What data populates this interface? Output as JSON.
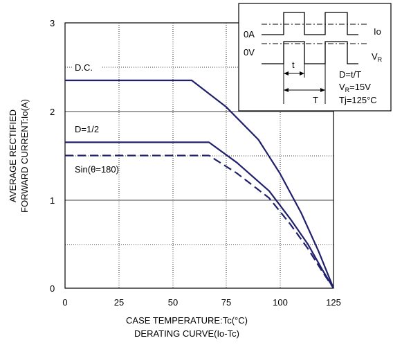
{
  "chart_data": {
    "type": "line",
    "xlabel": "CASE TEMPERATURE:Tc(°C)",
    "subtitle": "DERATING CURVE(Io-Tc)",
    "ylabel_line1": "AVERAGE RECTIFIED",
    "ylabel_line2": "FORWARD CURRENT:Io(A)",
    "xlim": [
      0,
      125
    ],
    "ylim": [
      0,
      3
    ],
    "x_ticks": [
      "0",
      "25",
      "50",
      "75",
      "100",
      "125"
    ],
    "y_ticks": [
      "0",
      "1",
      "2",
      "3"
    ],
    "grid": true,
    "series": [
      {
        "name": "D.C.",
        "style": "solid",
        "points": [
          [
            0,
            2.35
          ],
          [
            59,
            2.35
          ],
          [
            75,
            2.05
          ],
          [
            90,
            1.68
          ],
          [
            100,
            1.3
          ],
          [
            110,
            0.85
          ],
          [
            118,
            0.42
          ],
          [
            125,
            0
          ]
        ]
      },
      {
        "name": "D=1/2",
        "style": "solid",
        "points": [
          [
            0,
            1.65
          ],
          [
            67,
            1.65
          ],
          [
            80,
            1.42
          ],
          [
            95,
            1.1
          ],
          [
            105,
            0.78
          ],
          [
            113,
            0.5
          ],
          [
            120,
            0.2
          ],
          [
            125,
            0
          ]
        ]
      },
      {
        "name": "Sin(θ=180)",
        "style": "dashed",
        "points": [
          [
            0,
            1.5
          ],
          [
            67,
            1.5
          ],
          [
            80,
            1.3
          ],
          [
            95,
            1.02
          ],
          [
            105,
            0.72
          ],
          [
            113,
            0.45
          ],
          [
            120,
            0.18
          ],
          [
            125,
            0
          ]
        ]
      }
    ],
    "inset": {
      "label_0A": "0A",
      "label_Io": "Io",
      "label_0V": "0V",
      "label_VR_main": "V",
      "label_VR_sub": "R",
      "label_t": "t",
      "label_T": "T",
      "eq1": "D=t/T",
      "eq2_main": "V",
      "eq2_sub": "R",
      "eq2_rest": "=15V",
      "eq3": "Tj=125°C"
    }
  },
  "colors": {
    "curve": "#1f1f6b",
    "axis": "#000000",
    "grid": "#000000"
  }
}
